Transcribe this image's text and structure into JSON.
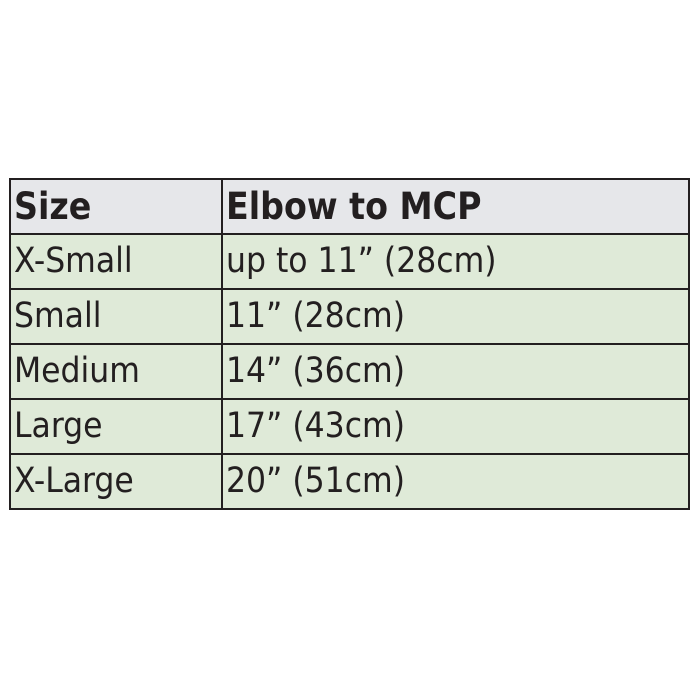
{
  "table": {
    "headers": [
      "Size",
      "Elbow to MCP"
    ],
    "rows": [
      [
        "X-Small",
        "up to 11” (28cm)"
      ],
      [
        "Small",
        "11” (28cm)"
      ],
      [
        "Medium",
        "14” (36cm)"
      ],
      [
        "Large",
        "17” (43cm)"
      ],
      [
        "X-Large",
        "20” (51cm)"
      ]
    ]
  },
  "colors": {
    "header_bg": "#e6e7ea",
    "row_bg": "#dfead8",
    "border": "#231f20"
  }
}
